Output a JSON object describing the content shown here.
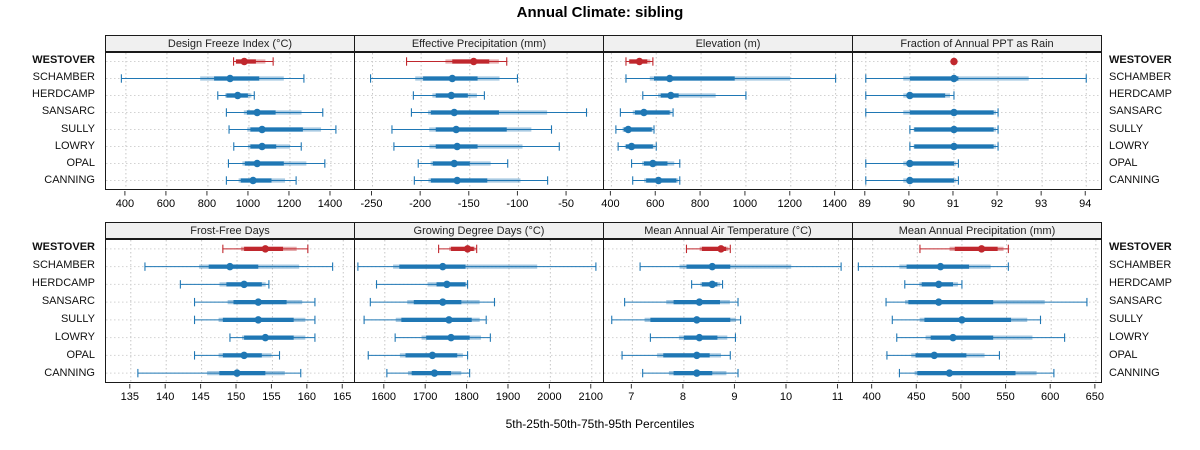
{
  "title": "Annual Climate: sibling",
  "caption": "5th-25th-50th-75th-95th Percentiles",
  "stations": [
    "WESTOVER",
    "SCHAMBER",
    "HERDCAMP",
    "SANSARC",
    "SULLY",
    "LOWRY",
    "OPAL",
    "CANNING"
  ],
  "highlight_station": "WESTOVER",
  "colors": {
    "highlight": "#C0272D",
    "normal": "#1F77B4",
    "grid": "#C6C6C6",
    "strip_bg": "#F0F0F0",
    "border": "#1A1A1A"
  },
  "chart_data": {
    "type": "trellis-percentile-dotplot",
    "percentile_labels": [
      "5th",
      "25th",
      "50th",
      "75th",
      "95th"
    ],
    "legend_position": "none",
    "grid": "dotted",
    "panels": [
      {
        "title": "Design Freeze Index (°C)",
        "grid_row": 0,
        "grid_col": 0,
        "xlim": [
          303,
          1522
        ],
        "ticks": [
          400,
          600,
          800,
          1000,
          1200,
          1400
        ],
        "values": [
          [
            925,
            937,
            977,
            1034,
            1118
          ],
          [
            378,
            830,
            908,
            1050,
            1268
          ],
          [
            848,
            890,
            945,
            995,
            1026
          ],
          [
            890,
            990,
            1040,
            1130,
            1360
          ],
          [
            903,
            1007,
            1064,
            1263,
            1424
          ],
          [
            926,
            1007,
            1064,
            1133,
            1255
          ],
          [
            900,
            980,
            1040,
            1170,
            1370
          ],
          [
            890,
            960,
            1020,
            1110,
            1230
          ]
        ]
      },
      {
        "title": "Effective Precipitation (mm)",
        "grid_row": 0,
        "grid_col": 1,
        "xlim": [
          -268,
          -11
        ],
        "ticks": [
          -250,
          -200,
          -150,
          -100,
          -50
        ],
        "values": [
          [
            -215,
            -168,
            -146,
            -130,
            -112
          ],
          [
            -252,
            -198,
            -168,
            -142,
            -101
          ],
          [
            -208,
            -185,
            -169,
            -152,
            -135
          ],
          [
            -210,
            -190,
            -166,
            -120,
            -30
          ],
          [
            -230,
            -185,
            -164,
            -112,
            -66
          ],
          [
            -228,
            -185,
            -163,
            -142,
            -58
          ],
          [
            -203,
            -188,
            -166,
            -150,
            -111
          ],
          [
            -207,
            -190,
            -163,
            -132,
            -70
          ]
        ]
      },
      {
        "title": "Elevation (m)",
        "grid_row": 0,
        "grid_col": 2,
        "xlim": [
          367,
          1482
        ],
        "ticks": [
          400,
          600,
          800,
          1000,
          1200,
          1400
        ],
        "values": [
          [
            465,
            480,
            525,
            560,
            585
          ],
          [
            465,
            590,
            660,
            950,
            1400
          ],
          [
            540,
            620,
            665,
            700,
            1000
          ],
          [
            440,
            505,
            545,
            660,
            675
          ],
          [
            420,
            455,
            475,
            580,
            590
          ],
          [
            430,
            465,
            490,
            585,
            600
          ],
          [
            490,
            545,
            585,
            650,
            705
          ],
          [
            495,
            555,
            610,
            690,
            705
          ]
        ]
      },
      {
        "title": "Fraction of Annual PPT as Rain",
        "grid_row": 0,
        "grid_col": 3,
        "xlim": [
          88.71,
          94.38
        ],
        "ticks": [
          89,
          90,
          91,
          92,
          93,
          94
        ],
        "values": [
          [
            91,
            91,
            91,
            91,
            91
          ],
          [
            89,
            90,
            91,
            91.1,
            94
          ],
          [
            89,
            90,
            90,
            90.8,
            91
          ],
          [
            89,
            90,
            91,
            91.9,
            92
          ],
          [
            90,
            90.1,
            91,
            91.9,
            92
          ],
          [
            90,
            90.1,
            91,
            91.9,
            92
          ],
          [
            89,
            90,
            90,
            91,
            91.1
          ],
          [
            89,
            90,
            90,
            91,
            91.1
          ]
        ]
      },
      {
        "title": "Frost-Free Days",
        "grid_row": 1,
        "grid_col": 0,
        "xlim": [
          131.5,
          166.8
        ],
        "ticks": [
          135,
          140,
          145,
          150,
          155,
          160,
          165
        ],
        "values": [
          [
            148,
            151,
            154,
            156.5,
            160
          ],
          [
            137,
            146,
            149,
            153,
            163.5
          ],
          [
            142,
            148.5,
            151,
            153.5,
            154.5
          ],
          [
            144,
            149.5,
            153,
            157,
            161
          ],
          [
            144,
            148,
            153,
            158,
            161
          ],
          [
            149,
            151,
            154,
            158,
            161
          ],
          [
            144,
            148,
            151,
            153.5,
            156
          ],
          [
            136,
            147.5,
            150,
            154,
            159
          ]
        ]
      },
      {
        "title": "Growing Degree Days (°C)",
        "grid_row": 1,
        "grid_col": 1,
        "xlim": [
          1528,
          2132
        ],
        "ticks": [
          1600,
          1700,
          1800,
          1900,
          2000,
          2100
        ],
        "values": [
          [
            1730,
            1760,
            1800,
            1815,
            1822
          ],
          [
            1535,
            1635,
            1740,
            1795,
            2110
          ],
          [
            1580,
            1725,
            1750,
            1795,
            1800
          ],
          [
            1565,
            1670,
            1740,
            1785,
            1865
          ],
          [
            1550,
            1640,
            1755,
            1810,
            1845
          ],
          [
            1625,
            1700,
            1760,
            1805,
            1855
          ],
          [
            1560,
            1650,
            1715,
            1775,
            1800
          ],
          [
            1605,
            1665,
            1720,
            1760,
            1805
          ]
        ]
      },
      {
        "title": "Mean Annual Air Temperature (°C)",
        "grid_row": 1,
        "grid_col": 2,
        "xlim": [
          6.45,
          11.3
        ],
        "ticks": [
          7,
          8,
          9,
          10,
          11
        ],
        "values": [
          [
            8.05,
            8.35,
            8.72,
            8.82,
            8.9
          ],
          [
            7.15,
            8.05,
            8.55,
            8.9,
            11.05
          ],
          [
            8.15,
            8.35,
            8.55,
            8.65,
            8.75
          ],
          [
            6.85,
            7.8,
            8.3,
            8.7,
            9.05
          ],
          [
            6.6,
            7.35,
            8.25,
            8.9,
            9.1
          ],
          [
            7.35,
            8.0,
            8.3,
            8.65,
            9.0
          ],
          [
            6.8,
            7.6,
            8.25,
            8.5,
            8.9
          ],
          [
            7.2,
            7.8,
            8.25,
            8.55,
            9.05
          ]
        ]
      },
      {
        "title": "Mean Annual Precipitation (mm)",
        "grid_row": 1,
        "grid_col": 3,
        "xlim": [
          378,
          658
        ],
        "ticks": [
          400,
          450,
          500,
          550,
          600,
          650
        ],
        "values": [
          [
            453,
            492,
            522,
            540,
            552
          ],
          [
            384,
            438,
            476,
            508,
            552
          ],
          [
            436,
            455,
            474,
            490,
            500
          ],
          [
            415,
            440,
            474,
            535,
            640
          ],
          [
            422,
            458,
            500,
            555,
            588
          ],
          [
            427,
            465,
            490,
            535,
            615
          ],
          [
            416,
            448,
            469,
            505,
            542
          ],
          [
            430,
            450,
            486,
            560,
            603
          ]
        ]
      }
    ]
  }
}
